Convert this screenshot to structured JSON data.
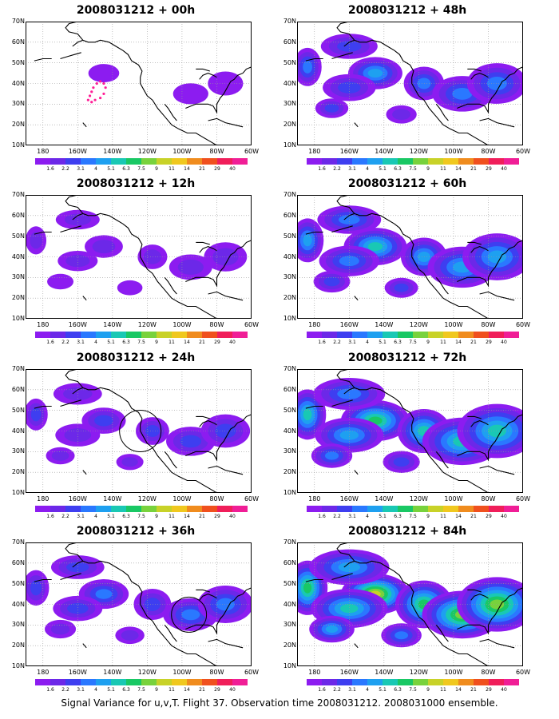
{
  "footer": "Signal Variance for u,v,T. Flight 37. Observation time 2008031212. 2008031000 ensemble.",
  "lat_labels": [
    "70N",
    "60N",
    "50N",
    "40N",
    "30N",
    "20N",
    "10N"
  ],
  "lon_labels": [
    "180",
    "160W",
    "140W",
    "120W",
    "100W",
    "80W",
    "60W"
  ],
  "colorbar": {
    "colors": [
      "#8c1cf0",
      "#6c28e8",
      "#3e3ef0",
      "#2a78ff",
      "#1ea0f0",
      "#19c8b4",
      "#19c864",
      "#78d23c",
      "#c8d228",
      "#f0c81e",
      "#f08c1e",
      "#f0501e",
      "#f01e5a",
      "#f01e96"
    ],
    "labels": [
      "1.6",
      "2.2",
      "3.1",
      "4",
      "5.1",
      "6.3",
      "7.5",
      "9",
      "11",
      "14",
      "21",
      "29",
      "40"
    ]
  },
  "panels": [
    {
      "title": "2008031212 + 00h",
      "col": 0,
      "row": 0,
      "level": 0.4,
      "markers": [
        "dots"
      ]
    },
    {
      "title": "2008031212 + 12h",
      "col": 0,
      "row": 1,
      "level": 0.9,
      "markers": []
    },
    {
      "title": "2008031212 + 24h",
      "col": 0,
      "row": 2,
      "level": 1.3,
      "markers": [
        "circle-west-coast"
      ]
    },
    {
      "title": "2008031212 + 36h",
      "col": 0,
      "row": 3,
      "level": 1.7,
      "markers": [
        "circle-gulf"
      ]
    },
    {
      "title": "2008031212 + 48h",
      "col": 1,
      "row": 0,
      "level": 2.0,
      "markers": []
    },
    {
      "title": "2008031212 + 60h",
      "col": 1,
      "row": 1,
      "level": 2.6,
      "markers": []
    },
    {
      "title": "2008031212 + 72h",
      "col": 1,
      "row": 2,
      "level": 3.3,
      "markers": []
    },
    {
      "title": "2008031212 + 84h",
      "col": 1,
      "row": 3,
      "level": 4.0,
      "markers": []
    }
  ]
}
